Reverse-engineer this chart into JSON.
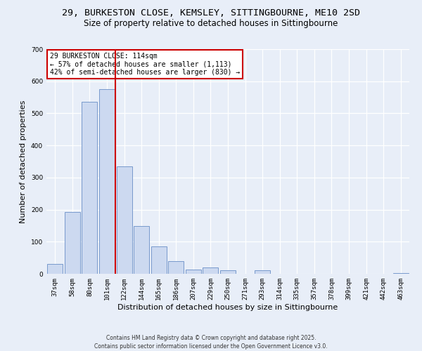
{
  "title_line1": "29, BURKESTON CLOSE, KEMSLEY, SITTINGBOURNE, ME10 2SD",
  "title_line2": "Size of property relative to detached houses in Sittingbourne",
  "xlabel": "Distribution of detached houses by size in Sittingbourne",
  "ylabel": "Number of detached properties",
  "categories": [
    "37sqm",
    "58sqm",
    "80sqm",
    "101sqm",
    "122sqm",
    "144sqm",
    "165sqm",
    "186sqm",
    "207sqm",
    "229sqm",
    "250sqm",
    "271sqm",
    "293sqm",
    "314sqm",
    "335sqm",
    "357sqm",
    "378sqm",
    "399sqm",
    "421sqm",
    "442sqm",
    "463sqm"
  ],
  "values": [
    30,
    192,
    535,
    575,
    335,
    148,
    85,
    40,
    13,
    20,
    10,
    0,
    10,
    0,
    0,
    0,
    0,
    0,
    0,
    0,
    2
  ],
  "bar_color": "#ccd9f0",
  "bar_edge_color": "#7799cc",
  "vline_color": "#cc0000",
  "vline_x_index": 3,
  "annotation_title": "29 BURKESTON CLOSE: 114sqm",
  "annotation_line2": "← 57% of detached houses are smaller (1,113)",
  "annotation_line3": "42% of semi-detached houses are larger (830) →",
  "annotation_box_color": "#ffffff",
  "annotation_box_edge": "#cc0000",
  "ylim": [
    0,
    700
  ],
  "yticks": [
    0,
    100,
    200,
    300,
    400,
    500,
    600,
    700
  ],
  "background_color": "#e8eef8",
  "footer_line1": "Contains HM Land Registry data © Crown copyright and database right 2025.",
  "footer_line2": "Contains public sector information licensed under the Open Government Licence v3.0.",
  "title_fontsize": 9.5,
  "subtitle_fontsize": 8.5,
  "tick_fontsize": 6.5,
  "axis_label_fontsize": 8,
  "footer_fontsize": 5.5
}
